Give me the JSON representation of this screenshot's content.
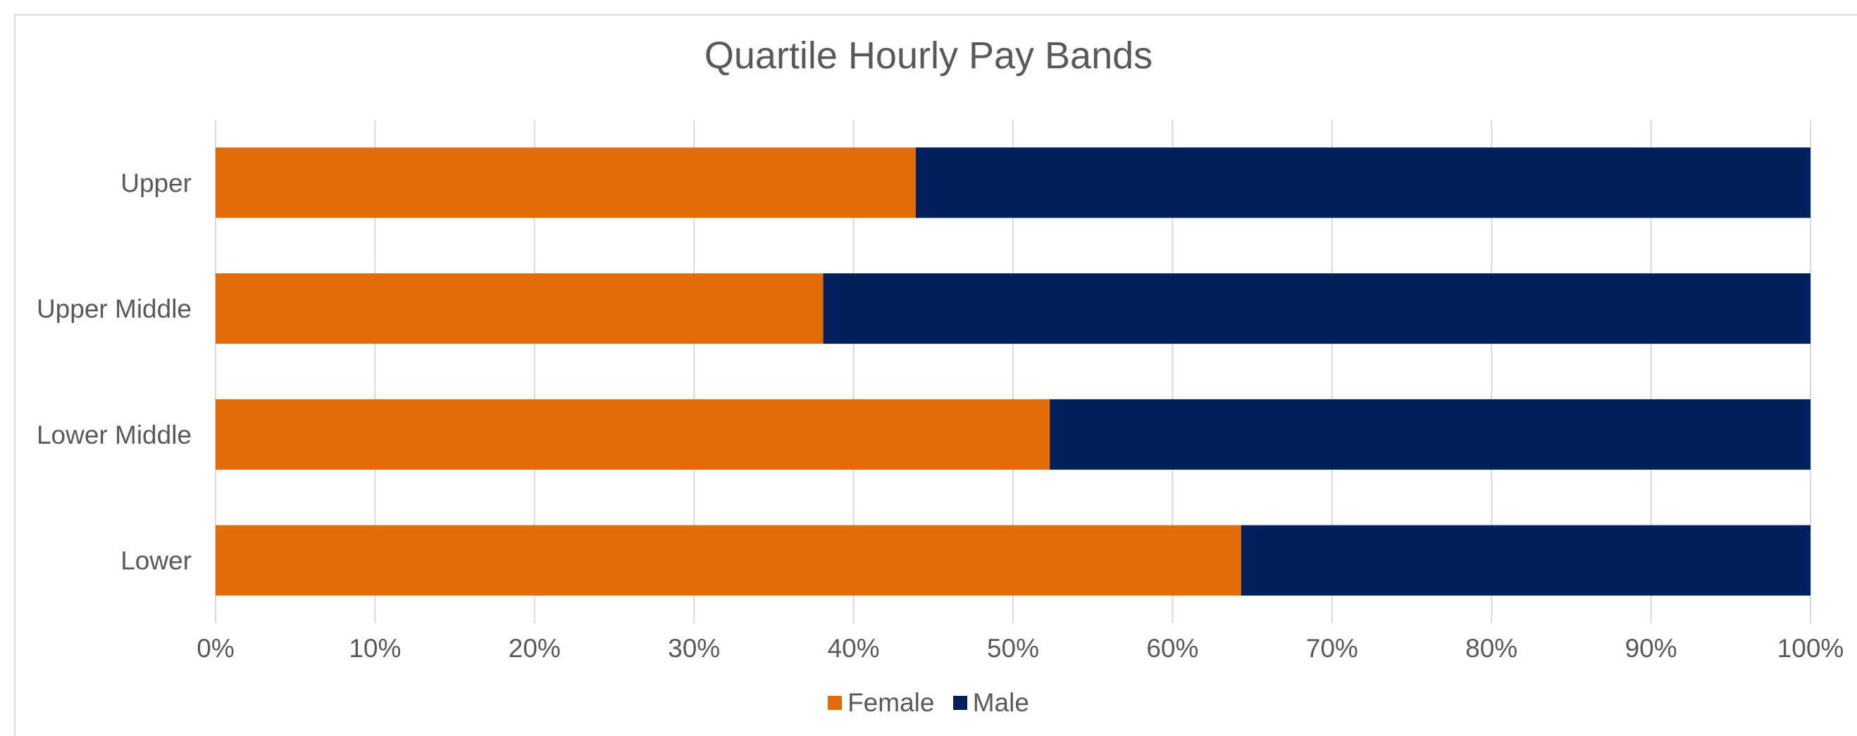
{
  "chart_data": {
    "type": "bar",
    "orientation": "horizontal",
    "stacked": true,
    "title": "Quartile Hourly Pay Bands",
    "categories": [
      "Upper",
      "Upper Middle",
      "Lower Middle",
      "Lower"
    ],
    "series": [
      {
        "name": "Female",
        "color": "#e36c09",
        "values": [
          43.9,
          38.1,
          52.3,
          64.3
        ]
      },
      {
        "name": "Male",
        "color": "#00205b",
        "values": [
          56.1,
          61.9,
          47.7,
          35.7
        ]
      }
    ],
    "x_ticks": [
      "0%",
      "10%",
      "20%",
      "30%",
      "40%",
      "50%",
      "60%",
      "70%",
      "80%",
      "90%",
      "100%"
    ],
    "xlim": [
      0,
      100
    ],
    "xlabel": "",
    "ylabel": "",
    "grid": "vertical",
    "legend_position": "bottom"
  }
}
